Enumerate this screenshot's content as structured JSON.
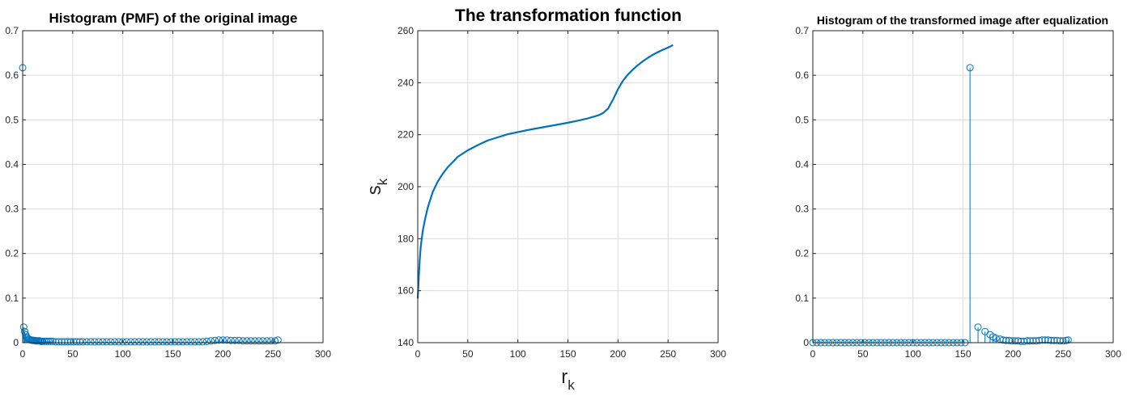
{
  "chart_data": [
    {
      "type": "stem",
      "title": "Histogram (PMF) of the original image",
      "xlim": [
        0,
        300
      ],
      "ylim": [
        0,
        0.7
      ],
      "xticks": [
        0,
        50,
        100,
        150,
        200,
        250,
        300
      ],
      "yticks": [
        0,
        0.1,
        0.2,
        0.3,
        0.4,
        0.5,
        0.6,
        0.7
      ],
      "grid": true,
      "color": "#0072BD",
      "points": [
        [
          0,
          0.617
        ],
        [
          1,
          0.035
        ],
        [
          2,
          0.025
        ],
        [
          3,
          0.018
        ],
        [
          4,
          0.013
        ],
        [
          5,
          0.01
        ],
        [
          6,
          0.008
        ],
        [
          7,
          0.007
        ],
        [
          8,
          0.006
        ],
        [
          9,
          0.006
        ],
        [
          10,
          0.005
        ],
        [
          11,
          0.005
        ],
        [
          12,
          0.005
        ],
        [
          13,
          0.004
        ],
        [
          14,
          0.004
        ],
        [
          15,
          0.004
        ],
        [
          16,
          0.004
        ],
        [
          17,
          0.004
        ],
        [
          18,
          0.003
        ],
        [
          19,
          0.003
        ],
        [
          20,
          0.003
        ],
        [
          22,
          0.003
        ],
        [
          24,
          0.003
        ],
        [
          26,
          0.003
        ],
        [
          28,
          0.003
        ],
        [
          30,
          0.003
        ],
        [
          33,
          0.002
        ],
        [
          36,
          0.002
        ],
        [
          39,
          0.002
        ],
        [
          42,
          0.002
        ],
        [
          45,
          0.002
        ],
        [
          48,
          0.002
        ],
        [
          51,
          0.002
        ],
        [
          54,
          0.002
        ],
        [
          57,
          0.002
        ],
        [
          60,
          0.002
        ],
        [
          64,
          0.002
        ],
        [
          68,
          0.002
        ],
        [
          72,
          0.002
        ],
        [
          76,
          0.002
        ],
        [
          80,
          0.002
        ],
        [
          84,
          0.002
        ],
        [
          88,
          0.002
        ],
        [
          92,
          0.002
        ],
        [
          96,
          0.002
        ],
        [
          100,
          0.002
        ],
        [
          104,
          0.002
        ],
        [
          108,
          0.002
        ],
        [
          112,
          0.002
        ],
        [
          116,
          0.002
        ],
        [
          120,
          0.002
        ],
        [
          124,
          0.002
        ],
        [
          128,
          0.002
        ],
        [
          132,
          0.002
        ],
        [
          136,
          0.002
        ],
        [
          140,
          0.002
        ],
        [
          144,
          0.002
        ],
        [
          148,
          0.002
        ],
        [
          152,
          0.002
        ],
        [
          156,
          0.002
        ],
        [
          160,
          0.002
        ],
        [
          164,
          0.002
        ],
        [
          168,
          0.002
        ],
        [
          172,
          0.002
        ],
        [
          176,
          0.002
        ],
        [
          180,
          0.002
        ],
        [
          184,
          0.003
        ],
        [
          188,
          0.004
        ],
        [
          192,
          0.005
        ],
        [
          196,
          0.006
        ],
        [
          200,
          0.006
        ],
        [
          204,
          0.006
        ],
        [
          208,
          0.005
        ],
        [
          212,
          0.005
        ],
        [
          216,
          0.005
        ],
        [
          220,
          0.004
        ],
        [
          224,
          0.004
        ],
        [
          228,
          0.004
        ],
        [
          232,
          0.004
        ],
        [
          236,
          0.004
        ],
        [
          240,
          0.004
        ],
        [
          244,
          0.004
        ],
        [
          248,
          0.004
        ],
        [
          252,
          0.004
        ],
        [
          255,
          0.006
        ]
      ]
    },
    {
      "type": "line",
      "title": "The transformation function",
      "xlabel": "r_k",
      "ylabel": "s_k",
      "xlim": [
        0,
        300
      ],
      "ylim": [
        140,
        260
      ],
      "xticks": [
        0,
        50,
        100,
        150,
        200,
        250,
        300
      ],
      "yticks": [
        140,
        160,
        180,
        200,
        220,
        240,
        260
      ],
      "grid": true,
      "color": "#0072BD",
      "x": [
        0,
        1,
        2,
        3,
        4,
        5,
        7,
        10,
        15,
        20,
        25,
        30,
        40,
        50,
        60,
        70,
        80,
        90,
        100,
        110,
        120,
        130,
        140,
        150,
        160,
        170,
        180,
        185,
        190,
        195,
        200,
        205,
        210,
        215,
        220,
        225,
        230,
        235,
        240,
        245,
        250,
        255
      ],
      "y": [
        157,
        165,
        172,
        177,
        180,
        183,
        187,
        192,
        198,
        202,
        205,
        207.5,
        211.5,
        214,
        216,
        217.8,
        219,
        220.2,
        221,
        221.8,
        222.5,
        223.2,
        223.9,
        224.6,
        225.4,
        226.3,
        227.4,
        228.3,
        230,
        233.5,
        237.5,
        240.8,
        243.2,
        245.1,
        246.8,
        248.3,
        249.6,
        250.8,
        251.8,
        252.7,
        253.5,
        254.5
      ]
    },
    {
      "type": "stem",
      "title": "Histogram of the transformed image after equalization",
      "xlim": [
        0,
        300
      ],
      "ylim": [
        0,
        0.7
      ],
      "xticks": [
        0,
        50,
        100,
        150,
        200,
        250,
        300
      ],
      "yticks": [
        0,
        0.1,
        0.2,
        0.3,
        0.4,
        0.5,
        0.6,
        0.7
      ],
      "grid": true,
      "color": "#0072BD",
      "points": [
        [
          0,
          0
        ],
        [
          4,
          0
        ],
        [
          8,
          0
        ],
        [
          12,
          0
        ],
        [
          16,
          0
        ],
        [
          20,
          0
        ],
        [
          24,
          0
        ],
        [
          28,
          0
        ],
        [
          32,
          0
        ],
        [
          36,
          0
        ],
        [
          40,
          0
        ],
        [
          44,
          0
        ],
        [
          48,
          0
        ],
        [
          52,
          0
        ],
        [
          56,
          0
        ],
        [
          60,
          0
        ],
        [
          64,
          0
        ],
        [
          68,
          0
        ],
        [
          72,
          0
        ],
        [
          76,
          0
        ],
        [
          80,
          0
        ],
        [
          84,
          0
        ],
        [
          88,
          0
        ],
        [
          92,
          0
        ],
        [
          96,
          0
        ],
        [
          100,
          0
        ],
        [
          104,
          0
        ],
        [
          108,
          0
        ],
        [
          112,
          0
        ],
        [
          116,
          0
        ],
        [
          120,
          0
        ],
        [
          124,
          0
        ],
        [
          128,
          0
        ],
        [
          132,
          0
        ],
        [
          136,
          0
        ],
        [
          140,
          0
        ],
        [
          144,
          0
        ],
        [
          148,
          0
        ],
        [
          152,
          0
        ],
        [
          157,
          0.617
        ],
        [
          165,
          0.035
        ],
        [
          172,
          0.025
        ],
        [
          177,
          0.018
        ],
        [
          180,
          0.013
        ],
        [
          183,
          0.01
        ],
        [
          187,
          0.008
        ],
        [
          190,
          0.006
        ],
        [
          193,
          0.005
        ],
        [
          196,
          0.005
        ],
        [
          199,
          0.004
        ],
        [
          202,
          0.004
        ],
        [
          205,
          0.004
        ],
        [
          208,
          0.003
        ],
        [
          211,
          0.003
        ],
        [
          214,
          0.004
        ],
        [
          217,
          0.004
        ],
        [
          220,
          0.004
        ],
        [
          223,
          0.004
        ],
        [
          226,
          0.005
        ],
        [
          229,
          0.006
        ],
        [
          232,
          0.006
        ],
        [
          235,
          0.006
        ],
        [
          238,
          0.005
        ],
        [
          241,
          0.005
        ],
        [
          244,
          0.005
        ],
        [
          247,
          0.004
        ],
        [
          250,
          0.004
        ],
        [
          253,
          0.005
        ],
        [
          255,
          0.006
        ]
      ]
    }
  ]
}
